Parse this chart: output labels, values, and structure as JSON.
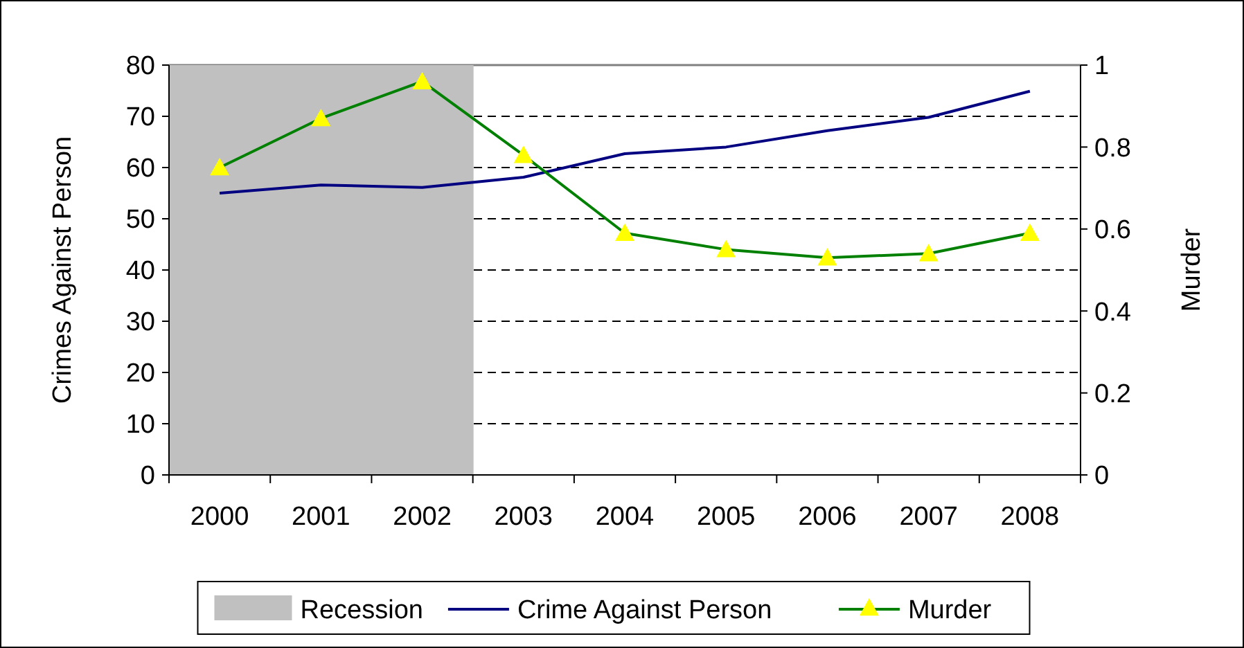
{
  "chart_data": {
    "type": "line",
    "categories": [
      "2000",
      "2001",
      "2002",
      "2003",
      "2004",
      "2005",
      "2006",
      "2007",
      "2008"
    ],
    "ylabel": "Crimes Against Person",
    "y2label": "Murder",
    "ylim": [
      0,
      80
    ],
    "yticks": [
      0,
      10,
      20,
      30,
      40,
      50,
      60,
      70,
      80
    ],
    "y2lim": [
      0,
      1
    ],
    "y2ticks": [
      0,
      0.2,
      0.4,
      0.6,
      0.8,
      1
    ],
    "grid": "y",
    "legend": "bottom",
    "line_style": "solid",
    "series": [
      {
        "name": "Recession",
        "type": "bar",
        "color": "#c0c0c0",
        "values": [
          80,
          80,
          80,
          null,
          null,
          null,
          null,
          null,
          null
        ]
      },
      {
        "name": "Crime Against Person",
        "color": "#000080",
        "marker": "none",
        "values": [
          55,
          56.6,
          56.1,
          58.1,
          62.7,
          64,
          67.2,
          69.8,
          74.9
        ]
      },
      {
        "name": "Murder",
        "color": "#008000",
        "marker": "triangle",
        "axis": "y2",
        "values": [
          0.75,
          0.87,
          0.96,
          0.78,
          0.59,
          0.55,
          0.53,
          0.54,
          0.59
        ]
      }
    ]
  }
}
